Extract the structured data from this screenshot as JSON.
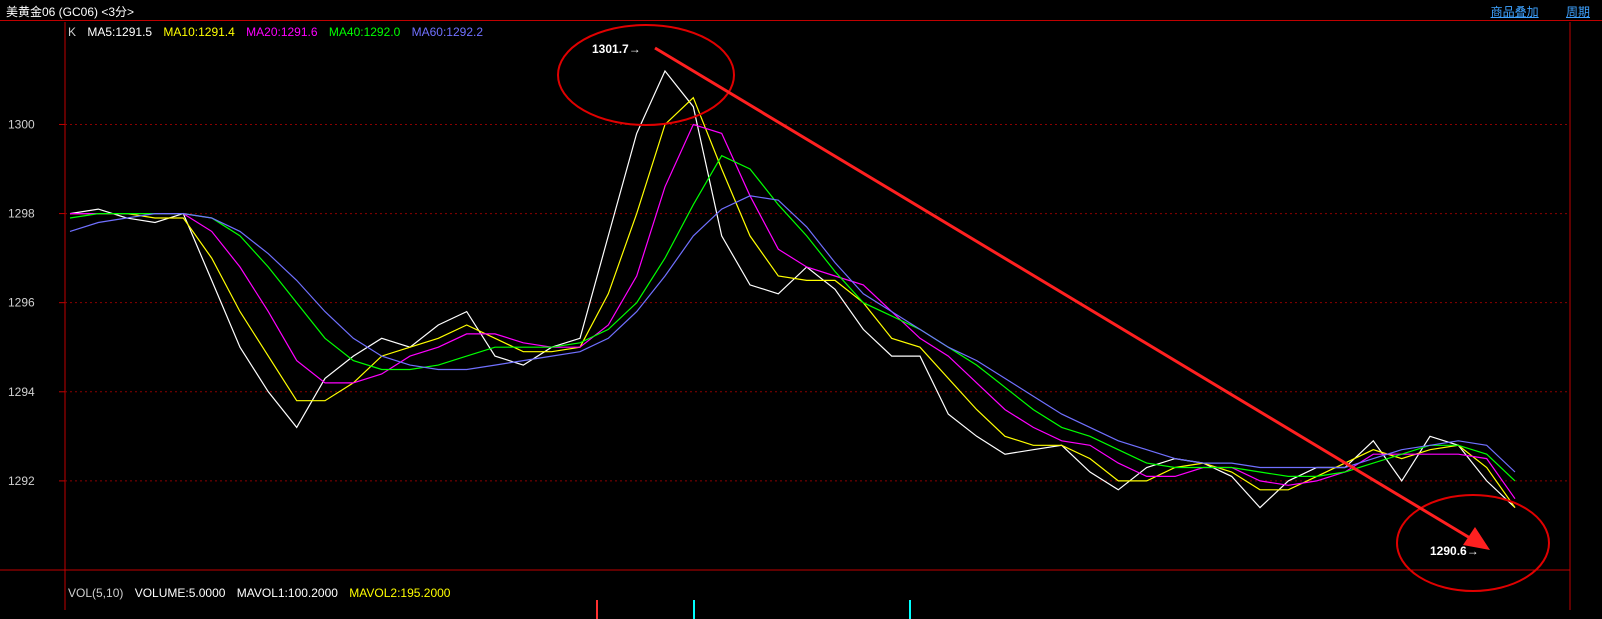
{
  "window": {
    "title": "美黄金06 (GC06) <3分>",
    "menu": [
      "商品叠加",
      "周期"
    ]
  },
  "legend": {
    "k_label": "K",
    "items": [
      {
        "text": "MA5:1291.5",
        "color": "#ffffff"
      },
      {
        "text": "MA10:1291.4",
        "color": "#ffff00"
      },
      {
        "text": "MA20:1291.6",
        "color": "#ff00ff"
      },
      {
        "text": "MA40:1292.0",
        "color": "#00ff00"
      },
      {
        "text": "MA60:1292.2",
        "color": "#7070ff"
      }
    ]
  },
  "volume_legend": {
    "items": [
      {
        "text": "VOL(5,10)",
        "color": "#d0d0d0"
      },
      {
        "text": "VOLUME:5.0000",
        "color": "#ffffff"
      },
      {
        "text": "MAVOL1:100.2000",
        "color": "#ffffff"
      },
      {
        "text": "MAVOL2:195.2000",
        "color": "#ffff00"
      }
    ]
  },
  "chart_data": {
    "type": "line",
    "title": "",
    "ylim": [
      1290.0,
      1302.3
    ],
    "y_ticks": [
      1292,
      1294,
      1296,
      1298,
      1300
    ],
    "grid": true,
    "annotations": {
      "high_label": "1301.7→",
      "high_value": 1301.7,
      "low_label": "1290.6→",
      "low_value": 1290.6
    },
    "series": [
      {
        "name": "MA5",
        "color": "#ffffff",
        "values": [
          1298.0,
          1298.1,
          1297.9,
          1297.8,
          1298.0,
          1296.5,
          1295.0,
          1294.0,
          1293.2,
          1294.3,
          1294.8,
          1295.2,
          1295.0,
          1295.5,
          1295.8,
          1294.8,
          1294.6,
          1295.0,
          1295.2,
          1297.5,
          1299.8,
          1301.2,
          1300.4,
          1297.5,
          1296.4,
          1296.2,
          1296.8,
          1296.3,
          1295.4,
          1294.8,
          1294.8,
          1293.5,
          1293.0,
          1292.6,
          1292.7,
          1292.8,
          1292.2,
          1291.8,
          1292.3,
          1292.5,
          1292.4,
          1292.1,
          1291.4,
          1292.0,
          1292.3,
          1292.3,
          1292.9,
          1292.0,
          1293.0,
          1292.8,
          1292.0,
          1291.4
        ]
      },
      {
        "name": "MA10",
        "color": "#ffff00",
        "values": [
          1298.0,
          1298.0,
          1298.0,
          1297.9,
          1297.9,
          1297.0,
          1295.8,
          1294.8,
          1293.8,
          1293.8,
          1294.2,
          1294.8,
          1295.0,
          1295.2,
          1295.5,
          1295.2,
          1294.9,
          1294.9,
          1295.0,
          1296.2,
          1298.0,
          1300.0,
          1300.6,
          1299.0,
          1297.5,
          1296.6,
          1296.5,
          1296.5,
          1296.0,
          1295.2,
          1295.0,
          1294.3,
          1293.6,
          1293.0,
          1292.8,
          1292.8,
          1292.5,
          1292.0,
          1292.0,
          1292.3,
          1292.4,
          1292.2,
          1291.8,
          1291.8,
          1292.1,
          1292.4,
          1292.7,
          1292.5,
          1292.7,
          1292.8,
          1292.3,
          1291.4
        ]
      },
      {
        "name": "MA20",
        "color": "#ff00ff",
        "values": [
          1298.0,
          1298.0,
          1298.0,
          1298.0,
          1298.0,
          1297.6,
          1296.8,
          1295.8,
          1294.7,
          1294.2,
          1294.2,
          1294.4,
          1294.8,
          1295.0,
          1295.3,
          1295.3,
          1295.1,
          1295.0,
          1295.0,
          1295.5,
          1296.6,
          1298.6,
          1300.0,
          1299.8,
          1298.4,
          1297.2,
          1296.8,
          1296.6,
          1296.4,
          1295.8,
          1295.2,
          1294.8,
          1294.2,
          1293.6,
          1293.2,
          1292.9,
          1292.8,
          1292.4,
          1292.1,
          1292.1,
          1292.3,
          1292.3,
          1292.0,
          1291.9,
          1292.0,
          1292.2,
          1292.6,
          1292.6,
          1292.6,
          1292.6,
          1292.5,
          1291.6
        ]
      },
      {
        "name": "MA40",
        "color": "#00ff00",
        "values": [
          1297.9,
          1298.0,
          1298.0,
          1298.0,
          1298.0,
          1297.9,
          1297.5,
          1296.8,
          1296.0,
          1295.2,
          1294.7,
          1294.5,
          1294.5,
          1294.6,
          1294.8,
          1295.0,
          1295.0,
          1295.0,
          1295.1,
          1295.4,
          1296.0,
          1297.0,
          1298.2,
          1299.3,
          1299.0,
          1298.2,
          1297.5,
          1296.7,
          1296.0,
          1295.7,
          1295.4,
          1295.0,
          1294.6,
          1294.1,
          1293.6,
          1293.2,
          1293.0,
          1292.7,
          1292.4,
          1292.3,
          1292.3,
          1292.3,
          1292.2,
          1292.1,
          1292.1,
          1292.2,
          1292.4,
          1292.6,
          1292.8,
          1292.8,
          1292.6,
          1292.0
        ]
      },
      {
        "name": "MA60",
        "color": "#7070ff",
        "values": [
          1297.6,
          1297.8,
          1297.9,
          1298.0,
          1298.0,
          1297.9,
          1297.6,
          1297.1,
          1296.5,
          1295.8,
          1295.2,
          1294.8,
          1294.6,
          1294.5,
          1294.5,
          1294.6,
          1294.7,
          1294.8,
          1294.9,
          1295.2,
          1295.8,
          1296.6,
          1297.5,
          1298.1,
          1298.4,
          1298.3,
          1297.7,
          1296.9,
          1296.2,
          1295.8,
          1295.4,
          1295.0,
          1294.7,
          1294.3,
          1293.9,
          1293.5,
          1293.2,
          1292.9,
          1292.7,
          1292.5,
          1292.4,
          1292.4,
          1292.3,
          1292.3,
          1292.3,
          1292.3,
          1292.5,
          1292.7,
          1292.8,
          1292.9,
          1292.8,
          1292.2
        ]
      }
    ]
  }
}
